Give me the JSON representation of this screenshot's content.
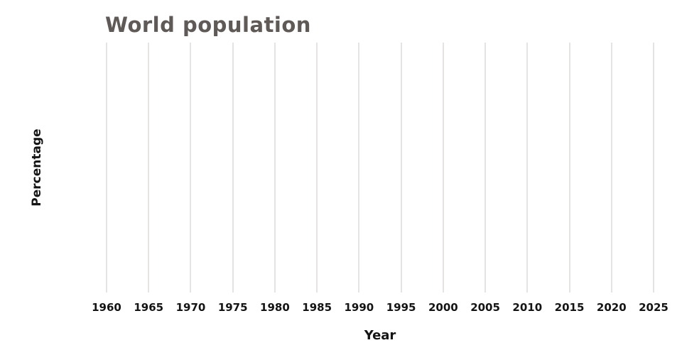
{
  "chart": {
    "title": "World population",
    "title_color": "#5f5a57",
    "xlabel": "Year",
    "ylabel": "Percentage",
    "grid_color": "#ccc9c4",
    "tick_label_color": "#141414",
    "tick_labels": [
      "1960",
      "1965",
      "1970",
      "1975",
      "1980",
      "1985",
      "1990",
      "1995",
      "2000",
      "2005",
      "2010",
      "2015",
      "2020",
      "2025"
    ]
  },
  "chart_data": {
    "type": "line",
    "title": "World population",
    "xlabel": "Year",
    "ylabel": "Percentage",
    "x_ticks": [
      1960,
      1965,
      1970,
      1975,
      1980,
      1985,
      1990,
      1995,
      2000,
      2005,
      2010,
      2015,
      2020,
      2025
    ],
    "xlim": [
      1960,
      2025
    ],
    "series": [],
    "grid": "vertical-only",
    "legend": "none",
    "y_ticks": []
  }
}
